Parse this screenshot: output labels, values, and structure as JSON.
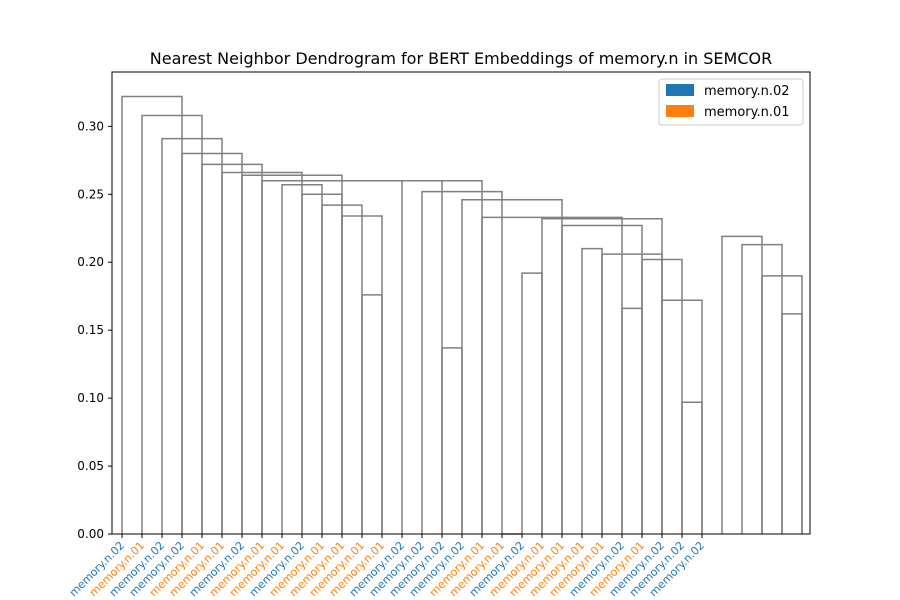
{
  "chart_data": {
    "type": "dendrogram",
    "title": "Nearest Neighbor Dendrogram for BERT Embeddings of memory.n in SEMCOR",
    "xlabel": "",
    "ylabel": "",
    "ylim": [
      0,
      0.34
    ],
    "yticks": [
      0.0,
      0.05,
      0.1,
      0.15,
      0.2,
      0.25,
      0.3
    ],
    "ytick_labels": [
      "0.00",
      "0.05",
      "0.10",
      "0.15",
      "0.20",
      "0.25",
      "0.30"
    ],
    "grid": false,
    "legend_position": "top-right",
    "legend": [
      {
        "label": "memory.n.02",
        "color": "#1f77b4"
      },
      {
        "label": "memory.n.01",
        "color": "#ff7f0e"
      }
    ],
    "link_color": "#808080",
    "leaves": [
      "memory.n.02",
      "memory.n.01",
      "memory.n.02",
      "memory.n.02",
      "memory.n.01",
      "memory.n.01",
      "memory.n.02",
      "memory.n.01",
      "memory.n.01",
      "memory.n.02",
      "memory.n.01",
      "memory.n.01",
      "memory.n.01",
      "memory.n.01",
      "memory.n.02",
      "memory.n.02",
      "memory.n.02",
      "memory.n.02",
      "memory.n.01",
      "memory.n.01",
      "memory.n.02",
      "memory.n.01",
      "memory.n.01",
      "memory.n.01",
      "memory.n.01",
      "memory.n.02",
      "memory.n.01",
      "memory.n.02",
      "memory.n.02",
      "memory.n.02"
    ],
    "links": [
      {
        "left": 1,
        "right": 4,
        "height": 0.322
      },
      {
        "left": 2,
        "right": 5,
        "height": 0.308
      },
      {
        "left": 3,
        "right": 6,
        "height": 0.291
      },
      {
        "left": 4,
        "right": 7,
        "height": 0.28
      },
      {
        "left": 5,
        "right": 8,
        "height": 0.272
      },
      {
        "left": 6,
        "right": 10,
        "height": 0.266
      },
      {
        "left": 7,
        "right": 12,
        "height": 0.264
      },
      {
        "left": 8,
        "right": 17,
        "height": 0.26
      },
      {
        "left": 9,
        "right": 11,
        "height": 0.257
      },
      {
        "left": 10,
        "right": 12,
        "height": 0.25
      },
      {
        "left": 11,
        "right": 13,
        "height": 0.242
      },
      {
        "left": 12,
        "right": 14,
        "height": 0.234
      },
      {
        "left": 13,
        "right": 14,
        "height": 0.176
      },
      {
        "left": 15,
        "right": 19,
        "height": 0.26
      },
      {
        "left": 16,
        "right": 20,
        "height": 0.252
      },
      {
        "left": 17,
        "right": 18,
        "height": 0.137
      },
      {
        "left": 18,
        "right": 23,
        "height": 0.246
      },
      {
        "left": 19,
        "right": 26,
        "height": 0.233
      },
      {
        "left": 20,
        "right": 21,
        "height": 0.0
      },
      {
        "left": 21,
        "right": 22,
        "height": 0.192
      },
      {
        "left": 22,
        "right": 28,
        "height": 0.232
      },
      {
        "left": 23,
        "right": 27,
        "height": 0.227
      },
      {
        "left": 24,
        "right": 25,
        "height": 0.21
      },
      {
        "left": 25,
        "right": 28,
        "height": 0.206
      },
      {
        "left": 26,
        "right": 27,
        "height": 0.166
      },
      {
        "left": 27,
        "right": 29,
        "height": 0.202
      },
      {
        "left": 28,
        "right": 30,
        "height": 0.172
      },
      {
        "left": 29,
        "right": 30,
        "height": 0.097
      },
      {
        "left": 31,
        "right": 33,
        "height": 0.219
      },
      {
        "left": 32,
        "right": 34,
        "height": 0.213
      },
      {
        "left": 33,
        "right": 35,
        "height": 0.19
      },
      {
        "left": 34,
        "right": 35,
        "height": 0.162
      }
    ]
  }
}
